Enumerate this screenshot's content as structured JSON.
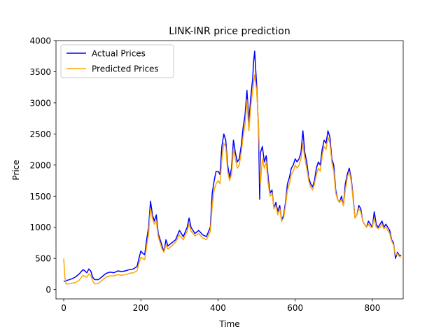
{
  "chart_data": {
    "type": "line",
    "title": "LINK-INR price prediction",
    "xlabel": "Time",
    "ylabel": "Price",
    "xlim": [
      -20,
      880
    ],
    "ylim": [
      -150,
      4000
    ],
    "xticks": [
      0,
      200,
      400,
      600,
      800
    ],
    "yticks": [
      0,
      500,
      1000,
      1500,
      2000,
      2500,
      3000,
      3500,
      4000
    ],
    "grid": false,
    "legend_position": "upper-left",
    "series": [
      {
        "name": "Actual Prices",
        "color": "#0000ff",
        "points": [
          [
            0,
            130
          ],
          [
            10,
            150
          ],
          [
            20,
            170
          ],
          [
            30,
            200
          ],
          [
            40,
            250
          ],
          [
            50,
            320
          ],
          [
            55,
            300
          ],
          [
            60,
            270
          ],
          [
            65,
            330
          ],
          [
            70,
            300
          ],
          [
            75,
            200
          ],
          [
            80,
            160
          ],
          [
            90,
            160
          ],
          [
            100,
            210
          ],
          [
            110,
            260
          ],
          [
            120,
            280
          ],
          [
            130,
            270
          ],
          [
            140,
            300
          ],
          [
            150,
            290
          ],
          [
            160,
            300
          ],
          [
            170,
            320
          ],
          [
            180,
            330
          ],
          [
            190,
            370
          ],
          [
            195,
            500
          ],
          [
            200,
            620
          ],
          [
            205,
            580
          ],
          [
            210,
            560
          ],
          [
            215,
            800
          ],
          [
            220,
            1000
          ],
          [
            225,
            1420
          ],
          [
            230,
            1200
          ],
          [
            235,
            1100
          ],
          [
            240,
            1200
          ],
          [
            245,
            900
          ],
          [
            250,
            800
          ],
          [
            255,
            700
          ],
          [
            260,
            600
          ],
          [
            265,
            800
          ],
          [
            270,
            700
          ],
          [
            280,
            750
          ],
          [
            290,
            800
          ],
          [
            300,
            950
          ],
          [
            310,
            850
          ],
          [
            320,
            1000
          ],
          [
            325,
            1150
          ],
          [
            330,
            1000
          ],
          [
            340,
            900
          ],
          [
            350,
            950
          ],
          [
            360,
            880
          ],
          [
            370,
            850
          ],
          [
            380,
            1000
          ],
          [
            385,
            1550
          ],
          [
            390,
            1750
          ],
          [
            395,
            1900
          ],
          [
            400,
            1900
          ],
          [
            405,
            1850
          ],
          [
            410,
            2300
          ],
          [
            415,
            2500
          ],
          [
            420,
            2400
          ],
          [
            425,
            2000
          ],
          [
            430,
            1800
          ],
          [
            435,
            1950
          ],
          [
            440,
            2400
          ],
          [
            445,
            2200
          ],
          [
            450,
            2050
          ],
          [
            455,
            2100
          ],
          [
            460,
            2300
          ],
          [
            465,
            2600
          ],
          [
            470,
            2800
          ],
          [
            475,
            3200
          ],
          [
            480,
            2700
          ],
          [
            485,
            3100
          ],
          [
            490,
            3400
          ],
          [
            492,
            3650
          ],
          [
            495,
            3830
          ],
          [
            498,
            3500
          ],
          [
            500,
            3300
          ],
          [
            505,
            2600
          ],
          [
            508,
            1450
          ],
          [
            510,
            2200
          ],
          [
            515,
            2300
          ],
          [
            520,
            2050
          ],
          [
            525,
            2150
          ],
          [
            530,
            1800
          ],
          [
            535,
            1550
          ],
          [
            540,
            1600
          ],
          [
            545,
            1300
          ],
          [
            550,
            1400
          ],
          [
            555,
            1250
          ],
          [
            560,
            1350
          ],
          [
            565,
            1100
          ],
          [
            570,
            1200
          ],
          [
            575,
            1400
          ],
          [
            580,
            1700
          ],
          [
            585,
            1800
          ],
          [
            590,
            1950
          ],
          [
            595,
            2000
          ],
          [
            600,
            2100
          ],
          [
            605,
            2050
          ],
          [
            610,
            2100
          ],
          [
            615,
            2200
          ],
          [
            620,
            2550
          ],
          [
            625,
            2200
          ],
          [
            630,
            2050
          ],
          [
            635,
            1800
          ],
          [
            640,
            1700
          ],
          [
            645,
            1650
          ],
          [
            650,
            1750
          ],
          [
            655,
            1950
          ],
          [
            660,
            2050
          ],
          [
            665,
            2000
          ],
          [
            670,
            2250
          ],
          [
            675,
            2400
          ],
          [
            680,
            2350
          ],
          [
            685,
            2550
          ],
          [
            690,
            2450
          ],
          [
            695,
            2100
          ],
          [
            700,
            2000
          ],
          [
            705,
            1600
          ],
          [
            710,
            1450
          ],
          [
            715,
            1400
          ],
          [
            720,
            1500
          ],
          [
            725,
            1350
          ],
          [
            730,
            1700
          ],
          [
            735,
            1850
          ],
          [
            740,
            1950
          ],
          [
            745,
            1800
          ],
          [
            750,
            1500
          ],
          [
            755,
            1150
          ],
          [
            760,
            1200
          ],
          [
            765,
            1350
          ],
          [
            770,
            1300
          ],
          [
            775,
            1100
          ],
          [
            780,
            1050
          ],
          [
            785,
            1000
          ],
          [
            790,
            1100
          ],
          [
            795,
            1050
          ],
          [
            800,
            1000
          ],
          [
            805,
            1250
          ],
          [
            810,
            1050
          ],
          [
            815,
            1000
          ],
          [
            820,
            1050
          ],
          [
            825,
            1100
          ],
          [
            830,
            1000
          ],
          [
            835,
            1050
          ],
          [
            840,
            1000
          ],
          [
            845,
            950
          ],
          [
            850,
            800
          ],
          [
            855,
            750
          ],
          [
            860,
            500
          ],
          [
            865,
            600
          ],
          [
            870,
            550
          ],
          [
            875,
            550
          ]
        ]
      },
      {
        "name": "Predicted Prices",
        "color": "#ffa500",
        "points": [
          [
            0,
            500
          ],
          [
            3,
            200
          ],
          [
            6,
            90
          ],
          [
            10,
            90
          ],
          [
            20,
            100
          ],
          [
            30,
            110
          ],
          [
            40,
            150
          ],
          [
            50,
            230
          ],
          [
            55,
            210
          ],
          [
            60,
            200
          ],
          [
            65,
            250
          ],
          [
            70,
            230
          ],
          [
            75,
            140
          ],
          [
            80,
            90
          ],
          [
            90,
            100
          ],
          [
            100,
            150
          ],
          [
            110,
            200
          ],
          [
            120,
            220
          ],
          [
            130,
            220
          ],
          [
            140,
            240
          ],
          [
            150,
            230
          ],
          [
            160,
            240
          ],
          [
            170,
            260
          ],
          [
            180,
            270
          ],
          [
            190,
            300
          ],
          [
            195,
            420
          ],
          [
            200,
            520
          ],
          [
            205,
            500
          ],
          [
            210,
            480
          ],
          [
            215,
            700
          ],
          [
            220,
            900
          ],
          [
            225,
            1300
          ],
          [
            230,
            1150
          ],
          [
            235,
            1050
          ],
          [
            240,
            1100
          ],
          [
            245,
            850
          ],
          [
            250,
            750
          ],
          [
            255,
            650
          ],
          [
            260,
            600
          ],
          [
            265,
            720
          ],
          [
            270,
            650
          ],
          [
            280,
            700
          ],
          [
            290,
            760
          ],
          [
            300,
            880
          ],
          [
            310,
            800
          ],
          [
            320,
            940
          ],
          [
            325,
            1060
          ],
          [
            330,
            940
          ],
          [
            340,
            860
          ],
          [
            350,
            900
          ],
          [
            360,
            830
          ],
          [
            370,
            800
          ],
          [
            380,
            930
          ],
          [
            385,
            1350
          ],
          [
            390,
            1600
          ],
          [
            395,
            1700
          ],
          [
            400,
            1750
          ],
          [
            405,
            1700
          ],
          [
            410,
            2100
          ],
          [
            415,
            2350
          ],
          [
            420,
            2300
          ],
          [
            425,
            1900
          ],
          [
            430,
            1750
          ],
          [
            435,
            1850
          ],
          [
            440,
            2250
          ],
          [
            445,
            2100
          ],
          [
            450,
            1950
          ],
          [
            455,
            2000
          ],
          [
            460,
            2200
          ],
          [
            465,
            2450
          ],
          [
            470,
            2650
          ],
          [
            475,
            3050
          ],
          [
            480,
            2550
          ],
          [
            485,
            2950
          ],
          [
            490,
            3200
          ],
          [
            495,
            3450
          ],
          [
            500,
            3200
          ],
          [
            505,
            2650
          ],
          [
            510,
            1700
          ],
          [
            515,
            2100
          ],
          [
            520,
            1950
          ],
          [
            525,
            2050
          ],
          [
            530,
            1700
          ],
          [
            535,
            1500
          ],
          [
            540,
            1550
          ],
          [
            545,
            1300
          ],
          [
            550,
            1350
          ],
          [
            555,
            1200
          ],
          [
            560,
            1300
          ],
          [
            565,
            1100
          ],
          [
            570,
            1150
          ],
          [
            575,
            1350
          ],
          [
            580,
            1600
          ],
          [
            585,
            1700
          ],
          [
            590,
            1850
          ],
          [
            595,
            1900
          ],
          [
            600,
            2000
          ],
          [
            605,
            1950
          ],
          [
            610,
            2000
          ],
          [
            615,
            2100
          ],
          [
            620,
            2350
          ],
          [
            625,
            2100
          ],
          [
            630,
            1950
          ],
          [
            635,
            1750
          ],
          [
            640,
            1650
          ],
          [
            645,
            1600
          ],
          [
            650,
            1700
          ],
          [
            655,
            1850
          ],
          [
            660,
            1950
          ],
          [
            665,
            1900
          ],
          [
            670,
            2150
          ],
          [
            675,
            2300
          ],
          [
            680,
            2250
          ],
          [
            685,
            2450
          ],
          [
            690,
            2350
          ],
          [
            695,
            2050
          ],
          [
            700,
            1900
          ],
          [
            705,
            1550
          ],
          [
            710,
            1450
          ],
          [
            715,
            1400
          ],
          [
            720,
            1450
          ],
          [
            725,
            1350
          ],
          [
            730,
            1600
          ],
          [
            735,
            1800
          ],
          [
            740,
            1900
          ],
          [
            745,
            1750
          ],
          [
            750,
            1450
          ],
          [
            755,
            1150
          ],
          [
            760,
            1200
          ],
          [
            765,
            1300
          ],
          [
            770,
            1250
          ],
          [
            775,
            1100
          ],
          [
            780,
            1050
          ],
          [
            785,
            1000
          ],
          [
            790,
            1050
          ],
          [
            795,
            1000
          ],
          [
            800,
            1000
          ],
          [
            805,
            1150
          ],
          [
            810,
            1000
          ],
          [
            815,
            980
          ],
          [
            820,
            1000
          ],
          [
            825,
            1050
          ],
          [
            830,
            980
          ],
          [
            835,
            1000
          ],
          [
            840,
            950
          ],
          [
            845,
            900
          ],
          [
            850,
            780
          ],
          [
            855,
            720
          ],
          [
            860,
            550
          ],
          [
            865,
            580
          ],
          [
            870,
            530
          ],
          [
            875,
            520
          ]
        ]
      }
    ]
  }
}
